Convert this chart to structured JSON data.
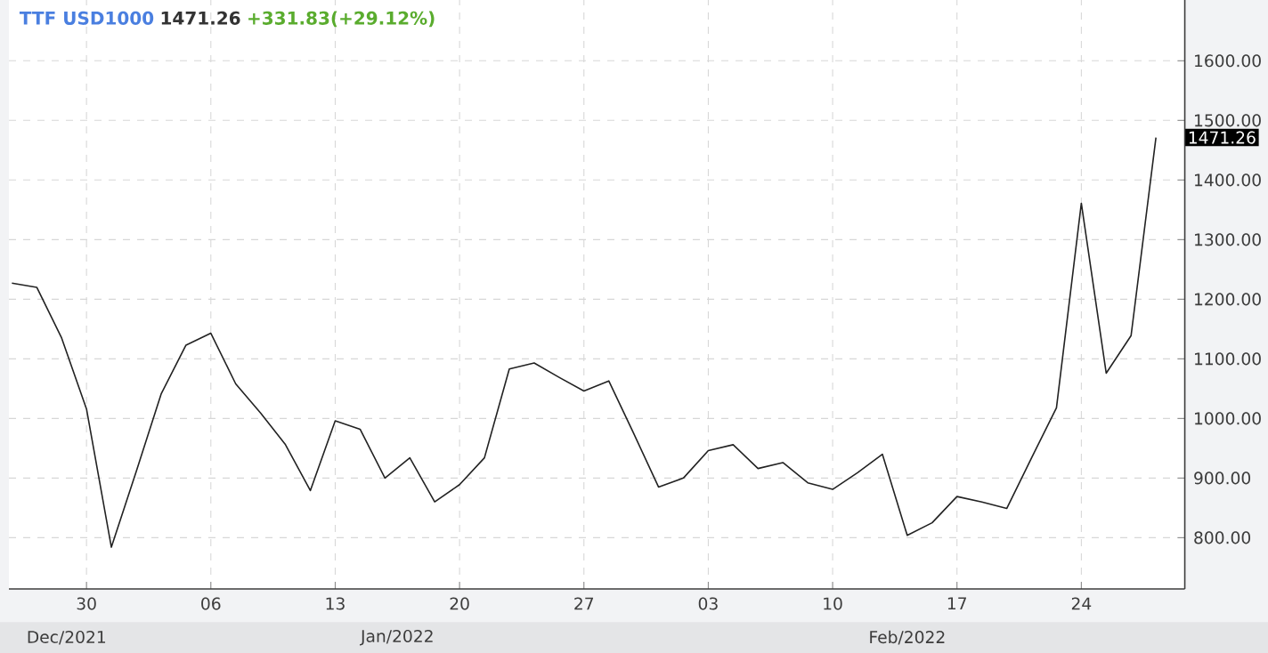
{
  "chart_data": {
    "type": "line",
    "title": "TTF USD1000",
    "subtitle": "1471.26",
    "categories": [
      null,
      null,
      null,
      "30",
      null,
      null,
      null,
      null,
      "06",
      null,
      null,
      null,
      null,
      "13",
      null,
      null,
      null,
      null,
      "20",
      null,
      null,
      null,
      null,
      "27",
      null,
      null,
      null,
      null,
      "03",
      null,
      null,
      null,
      null,
      "10",
      null,
      null,
      null,
      null,
      "17",
      null,
      null,
      null,
      null,
      "24",
      null,
      null,
      null
    ],
    "series": [
      {
        "color": "#222222",
        "values": [
          1227,
          1220,
          1135,
          1016,
          784,
          911,
          1041,
          1123,
          1143,
          1058,
          1009,
          956,
          879,
          996,
          982,
          900,
          934,
          860,
          889,
          934,
          1083,
          1093,
          1069,
          1046,
          1063,
          975,
          885,
          900,
          946,
          956,
          916,
          926,
          892,
          881,
          909,
          940,
          804,
          825,
          869,
          860,
          849,
          934,
          1018,
          1361,
          1076,
          1139,
          1471.26
        ]
      }
    ],
    "ylim": [
      714,
      1702
    ],
    "yticks": [
      {
        "value": 800,
        "label": "800.00"
      },
      {
        "value": 900,
        "label": "900.00"
      },
      {
        "value": 1000,
        "label": "1000.00"
      },
      {
        "value": 1100,
        "label": "1100.00"
      },
      {
        "value": 1200,
        "label": "1200.00"
      },
      {
        "value": 1300,
        "label": "1300.00"
      },
      {
        "value": 1400,
        "label": "1400.00"
      },
      {
        "value": 1500,
        "label": "1500.00"
      },
      {
        "value": 1600,
        "label": "1600.00"
      }
    ],
    "grid": true,
    "marker": "none",
    "line_style": "solid",
    "annotations": [
      "+331.83(+29.12%)",
      "1471.26",
      "Dec/2021",
      "Jan/2022",
      "Feb/2022"
    ]
  }
}
